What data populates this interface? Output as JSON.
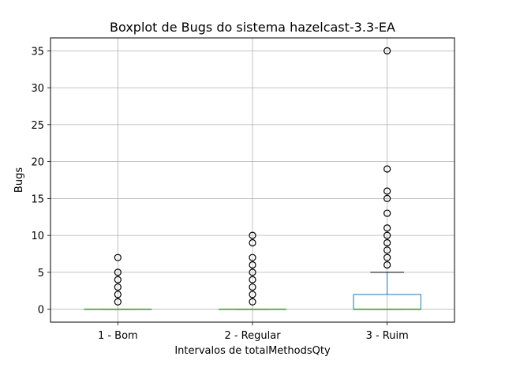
{
  "chart_data": {
    "type": "boxplot",
    "title": "Boxplot de Bugs do sistema hazelcast-3.3-EA",
    "xlabel": "Intervalos de totalMethodsQty",
    "ylabel": "Bugs",
    "ylim": [
      -1.75,
      36.75
    ],
    "yticks": [
      0,
      5,
      10,
      15,
      20,
      25,
      30,
      35
    ],
    "grid": true,
    "colors": {
      "box": "#1f77b4",
      "median": "#2ca02c",
      "grid": "#b0b0b0",
      "outlier": "#000000"
    },
    "categories": [
      "1 - Bom",
      "2 - Regular",
      "3 - Ruim"
    ],
    "boxes": [
      {
        "q1": 0,
        "median": 0,
        "q3": 0,
        "whisker_low": 0,
        "whisker_high": 0,
        "outliers": [
          1,
          2,
          3,
          4,
          5,
          7
        ]
      },
      {
        "q1": 0,
        "median": 0,
        "q3": 0,
        "whisker_low": 0,
        "whisker_high": 0,
        "outliers": [
          1,
          2,
          3,
          4,
          5,
          6,
          7,
          9,
          10
        ]
      },
      {
        "q1": 0,
        "median": 0,
        "q3": 2,
        "whisker_low": 0,
        "whisker_high": 5,
        "outliers": [
          6,
          7,
          8,
          9,
          10,
          11,
          13,
          15,
          16,
          19,
          35
        ]
      }
    ]
  }
}
